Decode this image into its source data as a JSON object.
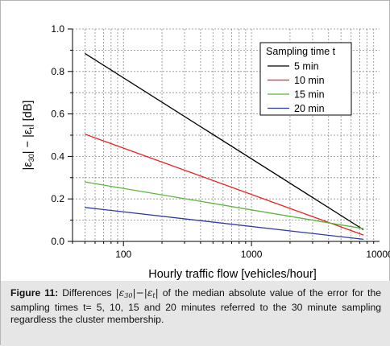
{
  "chart_data": {
    "type": "line",
    "xscale": "log",
    "xlim": [
      40,
      10000
    ],
    "ylim": [
      0,
      1.0
    ],
    "xlabel": "Hourly traffic flow [vehicles/hour]",
    "ylabel_parts": [
      "|ε",
      "30",
      "| − |ε",
      "t",
      "| [dB]"
    ],
    "xtick_labels": [
      {
        "x": 100,
        "label": "100"
      },
      {
        "x": 1000,
        "label": "1000"
      },
      {
        "x": 10000,
        "label": "10000"
      }
    ],
    "ytick_labels": [
      {
        "y": 0.0,
        "label": "0.0"
      },
      {
        "y": 0.2,
        "label": "0.2"
      },
      {
        "y": 0.4,
        "label": "0.4"
      },
      {
        "y": 0.6,
        "label": "0.6"
      },
      {
        "y": 0.8,
        "label": "0.8"
      },
      {
        "y": 1.0,
        "label": "1.0"
      }
    ],
    "grid": true,
    "legend": {
      "title": "Sampling time t",
      "placement": "top-right"
    },
    "series": [
      {
        "name": "5 min",
        "color": "#000000",
        "x": [
          50,
          7500
        ],
        "y": [
          0.885,
          0.055
        ]
      },
      {
        "name": "10 min",
        "color": "#e8201e",
        "x": [
          50,
          7500
        ],
        "y": [
          0.505,
          0.03
        ]
      },
      {
        "name": "15 min",
        "color": "#5ab53a",
        "x": [
          50,
          7500
        ],
        "y": [
          0.28,
          0.06
        ]
      },
      {
        "name": "20 min",
        "color": "#2e3a9c",
        "x": [
          50,
          7500
        ],
        "y": [
          0.16,
          0.01
        ]
      }
    ]
  },
  "caption": {
    "label": "Figure 11:",
    "pre": "Differences",
    "eps30_sub": "30",
    "epst_sub": "t",
    "text": "of the median absolute value of the error for the sampling times t= 5, 10, 15 and 20 minutes referred to the 30 minute sampling regardless the cluster membership."
  }
}
